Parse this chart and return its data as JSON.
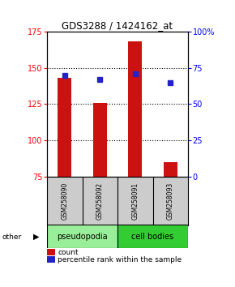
{
  "title": "GDS3288 / 1424162_at",
  "samples": [
    "GSM258090",
    "GSM258092",
    "GSM258091",
    "GSM258093"
  ],
  "bar_values": [
    143,
    126,
    168,
    85
  ],
  "percentile_values": [
    70,
    67,
    71,
    65
  ],
  "bar_color": "#cc1111",
  "dot_color": "#2222cc",
  "ylim_left": [
    75,
    175
  ],
  "ylim_right": [
    0,
    100
  ],
  "yticks_left": [
    75,
    100,
    125,
    150,
    175
  ],
  "yticks_right": [
    0,
    25,
    50,
    75,
    100
  ],
  "ytick_labels_right": [
    "0",
    "25",
    "50",
    "75",
    "100%"
  ],
  "bar_bottom": 75,
  "groups": [
    {
      "label": "pseudopodia",
      "color": "#99ee99",
      "indices": [
        0,
        1
      ]
    },
    {
      "label": "cell bodies",
      "color": "#33cc33",
      "indices": [
        2,
        3
      ]
    }
  ],
  "other_label": "other",
  "legend_count_label": "count",
  "legend_pct_label": "percentile rank within the sample",
  "bg_color": "#ffffff",
  "plot_bg": "#ffffff",
  "label_box_color": "#cccccc",
  "figsize": [
    2.9,
    3.54
  ],
  "dpi": 100
}
